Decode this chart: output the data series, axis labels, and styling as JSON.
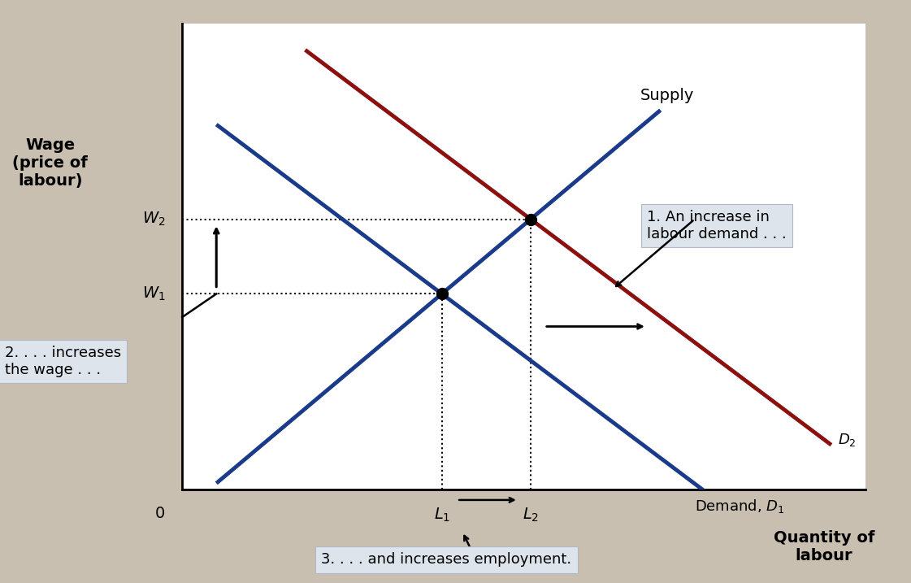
{
  "background_color": "#c8bfb0",
  "plot_bg_color": "#ffffff",
  "supply_color": "#1a3a8a",
  "demand1_color": "#1a3a8a",
  "demand2_color": "#8B1010",
  "supply_label": "Supply",
  "demand1_label": "Demand, $D_1$",
  "demand2_label": "$D_2$",
  "ylabel": "Wage\n(price of\nlabour)",
  "xlabel": "Quantity of\nlabour",
  "annotation_1": "1. An increase in\nlabour demand . . .",
  "annotation_2": "2. . . . increases\nthe wage . . .",
  "annotation_3": "3. . . . and increases employment.",
  "xlim": [
    0,
    10
  ],
  "ylim": [
    0,
    10
  ],
  "eq1_x": 3.8,
  "eq1_y": 4.2,
  "eq2_x": 5.1,
  "eq2_y": 5.8,
  "supply_slope": 1.5,
  "demand_slope": -1.1,
  "demand2_shift": 1.3
}
